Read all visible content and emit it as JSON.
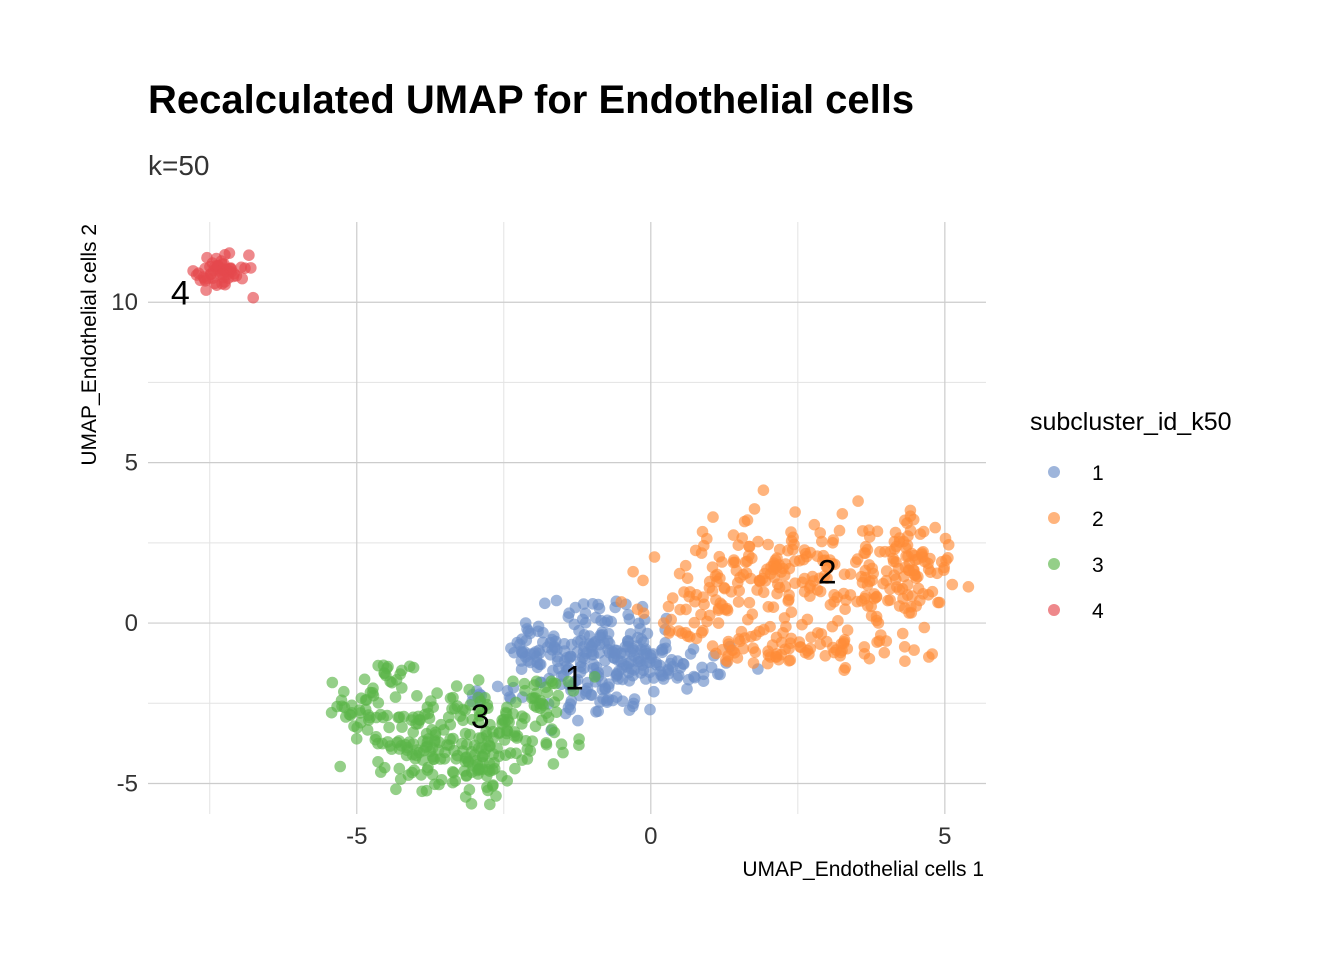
{
  "chart_data": {
    "type": "scatter",
    "title": "Recalculated UMAP for Endothelial cells",
    "subtitle": "k=50",
    "xlabel": "UMAP_Endothelial cells 1",
    "ylabel": "UMAP_Endothelial cells 2",
    "xlim": [
      -8.55,
      5.7
    ],
    "ylim": [
      -5.95,
      12.5
    ],
    "x_ticks": [
      -5,
      0,
      5
    ],
    "x_tick_labels": [
      "-5",
      "0",
      "5"
    ],
    "y_ticks": [
      -5,
      0,
      5,
      10
    ],
    "y_tick_labels": [
      "-5",
      "0",
      "5",
      "10"
    ],
    "x_minor_ticks": [
      -7.5,
      -2.5,
      2.5
    ],
    "y_minor_ticks": [
      -2.5,
      2.5,
      7.5
    ],
    "grid": true,
    "legend": {
      "title": "subcluster_id_k50",
      "position": "right",
      "entries": [
        "1",
        "2",
        "3",
        "4"
      ]
    },
    "point_opacity": 0.65,
    "series": [
      {
        "name": "1",
        "color": "#6A8EC8",
        "label": "1",
        "label_x": -1.3,
        "label_y": -1.7,
        "clusters": [
          {
            "cx": -1.9,
            "cy": -0.9,
            "sx": 0.3,
            "sy": 0.45,
            "n": 50
          },
          {
            "cx": -1.1,
            "cy": -1.6,
            "sx": 0.55,
            "sy": 0.6,
            "n": 70
          },
          {
            "cx": -0.6,
            "cy": -0.6,
            "sx": 0.4,
            "sy": 0.5,
            "n": 50
          },
          {
            "cx": -0.2,
            "cy": -1.2,
            "sx": 0.35,
            "sy": 0.4,
            "n": 40
          },
          {
            "cx": 0.6,
            "cy": -1.4,
            "sx": 0.5,
            "sy": 0.35,
            "n": 30
          },
          {
            "cx": -0.9,
            "cy": 0.4,
            "sx": 0.45,
            "sy": 0.3,
            "n": 20
          },
          {
            "cx": -2.7,
            "cy": -2.2,
            "sx": 0.3,
            "sy": 0.2,
            "n": 12
          },
          {
            "cx": -0.7,
            "cy": -2.5,
            "sx": 0.5,
            "sy": 0.3,
            "n": 20
          }
        ]
      },
      {
        "name": "2",
        "color": "#FF8C38",
        "label": "2",
        "label_x": 3.0,
        "label_y": 1.6,
        "clusters": [
          {
            "cx": 1.8,
            "cy": 1.5,
            "sx": 0.7,
            "sy": 1.0,
            "n": 100
          },
          {
            "cx": 3.3,
            "cy": 1.2,
            "sx": 0.8,
            "sy": 1.0,
            "n": 110
          },
          {
            "cx": 4.4,
            "cy": 1.6,
            "sx": 0.4,
            "sy": 0.8,
            "n": 80
          },
          {
            "cx": 0.7,
            "cy": 0.8,
            "sx": 0.45,
            "sy": 0.7,
            "n": 40
          },
          {
            "cx": 2.9,
            "cy": -0.6,
            "sx": 0.8,
            "sy": 0.45,
            "n": 50
          },
          {
            "cx": 1.6,
            "cy": -0.7,
            "sx": 0.4,
            "sy": 0.3,
            "n": 20
          }
        ]
      },
      {
        "name": "3",
        "color": "#5BB548",
        "label": "3",
        "label_x": -2.9,
        "label_y": -2.9,
        "clusters": [
          {
            "cx": -4.8,
            "cy": -2.8,
            "sx": 0.3,
            "sy": 0.6,
            "n": 50
          },
          {
            "cx": -3.8,
            "cy": -3.9,
            "sx": 0.4,
            "sy": 0.7,
            "n": 90
          },
          {
            "cx": -2.9,
            "cy": -4.3,
            "sx": 0.4,
            "sy": 0.5,
            "n": 60
          },
          {
            "cx": -2.3,
            "cy": -3.4,
            "sx": 0.4,
            "sy": 0.5,
            "n": 50
          },
          {
            "cx": -1.8,
            "cy": -2.4,
            "sx": 0.3,
            "sy": 0.4,
            "n": 30
          },
          {
            "cx": -4.4,
            "cy": -1.6,
            "sx": 0.15,
            "sy": 0.15,
            "n": 12
          },
          {
            "cx": -3.0,
            "cy": -2.6,
            "sx": 0.35,
            "sy": 0.4,
            "n": 20
          }
        ]
      },
      {
        "name": "4",
        "color": "#E5484D",
        "label": "4",
        "label_x": -8.0,
        "label_y": 10.3,
        "clusters": [
          {
            "cx": -7.35,
            "cy": 10.95,
            "sx": 0.22,
            "sy": 0.3,
            "n": 55
          }
        ]
      }
    ]
  }
}
